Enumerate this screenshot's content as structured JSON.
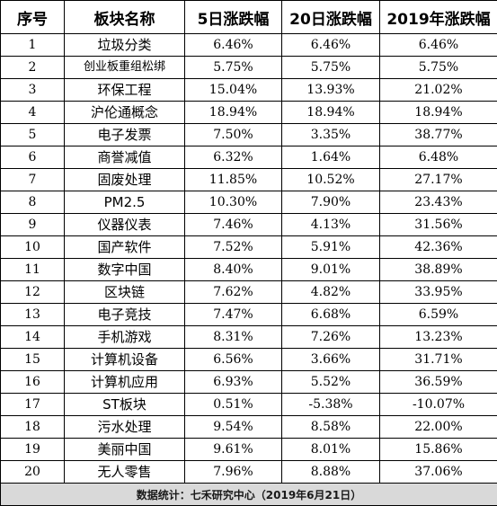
{
  "table": {
    "headers": [
      "序号",
      "板块名称",
      "5日涨跌幅",
      "20日涨跌幅",
      "2019年涨跌幅"
    ],
    "rows": [
      [
        "1",
        "垃圾分类",
        "6.46%",
        "6.46%",
        "6.46%"
      ],
      [
        "2",
        "创业板重组松绑",
        "5.75%",
        "5.75%",
        "5.75%"
      ],
      [
        "3",
        "环保工程",
        "15.04%",
        "13.93%",
        "21.02%"
      ],
      [
        "4",
        "沪伦通概念",
        "18.94%",
        "18.94%",
        "18.94%"
      ],
      [
        "5",
        "电子发票",
        "7.50%",
        "3.35%",
        "38.77%"
      ],
      [
        "6",
        "商誉减值",
        "6.32%",
        "1.64%",
        "6.48%"
      ],
      [
        "7",
        "固废处理",
        "11.85%",
        "10.52%",
        "27.17%"
      ],
      [
        "8",
        "PM2.5",
        "10.30%",
        "7.90%",
        "23.43%"
      ],
      [
        "9",
        "仪器仪表",
        "7.46%",
        "4.13%",
        "31.56%"
      ],
      [
        "10",
        "国产软件",
        "7.52%",
        "5.91%",
        "42.36%"
      ],
      [
        "11",
        "数字中国",
        "8.40%",
        "9.01%",
        "38.89%"
      ],
      [
        "12",
        "区块链",
        "7.62%",
        "4.82%",
        "33.95%"
      ],
      [
        "13",
        "电子竞技",
        "7.47%",
        "6.68%",
        "6.59%"
      ],
      [
        "14",
        "手机游戏",
        "8.31%",
        "7.26%",
        "13.23%"
      ],
      [
        "15",
        "计算机设备",
        "6.56%",
        "3.66%",
        "31.71%"
      ],
      [
        "16",
        "计算机应用",
        "6.93%",
        "5.52%",
        "36.59%"
      ],
      [
        "17",
        "ST板块",
        "0.51%",
        "-5.38%",
        "-10.07%"
      ],
      [
        "18",
        "污水处理",
        "9.54%",
        "8.58%",
        "22.00%"
      ],
      [
        "19",
        "美丽中国",
        "9.61%",
        "8.01%",
        "15.86%"
      ],
      [
        "20",
        "无人零售",
        "7.96%",
        "8.88%",
        "37.06%"
      ]
    ],
    "footer": "数据统计：七禾研究中心（2019年6月21日）"
  },
  "colors": {
    "border": "#000000",
    "footer_background": "#d9d9d9",
    "page_background": "#ffffff"
  }
}
